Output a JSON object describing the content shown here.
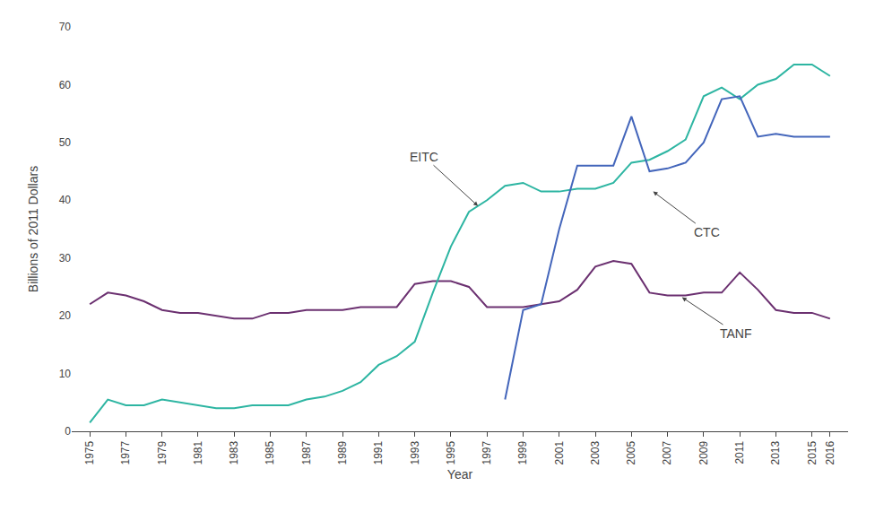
{
  "chart_data": {
    "type": "line",
    "xlabel": "Year",
    "ylabel": "Billions of 2011 Dollars",
    "xlim": [
      1974,
      2017
    ],
    "xticks": [
      1975,
      1977,
      1979,
      1981,
      1983,
      1985,
      1987,
      1989,
      1991,
      1993,
      1995,
      1997,
      1999,
      2001,
      2003,
      2005,
      2007,
      2009,
      2011,
      2013,
      2015,
      2016
    ],
    "ylim": [
      0,
      70
    ],
    "yticks": [
      0,
      10,
      20,
      30,
      40,
      50,
      60,
      70
    ],
    "grid": false,
    "series": [
      {
        "name": "TANF",
        "color": "#6b3070",
        "x": [
          1975,
          1976,
          1977,
          1978,
          1979,
          1980,
          1981,
          1982,
          1983,
          1984,
          1985,
          1986,
          1987,
          1988,
          1989,
          1990,
          1991,
          1992,
          1993,
          1994,
          1995,
          1996,
          1997,
          1998,
          1999,
          2000,
          2001,
          2002,
          2003,
          2004,
          2005,
          2006,
          2007,
          2008,
          2009,
          2010,
          2011,
          2012,
          2013,
          2014,
          2015,
          2016
        ],
        "values": [
          22.0,
          24.0,
          23.5,
          22.5,
          21.0,
          20.5,
          20.5,
          20.0,
          19.5,
          19.5,
          20.5,
          20.5,
          21.0,
          21.0,
          21.0,
          21.5,
          21.5,
          21.5,
          25.5,
          26.0,
          26.0,
          25.0,
          21.5,
          21.5,
          21.5,
          22.0,
          22.5,
          24.5,
          28.5,
          29.5,
          29.0,
          24.0,
          23.5,
          23.5,
          24.0,
          24.0,
          27.5,
          24.5,
          21.0,
          20.5,
          20.5,
          19.5
        ]
      },
      {
        "name": "EITC",
        "color": "#2db5a2",
        "x": [
          1975,
          1976,
          1977,
          1978,
          1979,
          1980,
          1981,
          1982,
          1983,
          1984,
          1985,
          1986,
          1987,
          1988,
          1989,
          1990,
          1991,
          1992,
          1993,
          1994,
          1995,
          1996,
          1997,
          1998,
          1999,
          2000,
          2001,
          2002,
          2003,
          2004,
          2005,
          2006,
          2007,
          2008,
          2009,
          2010,
          2011,
          2012,
          2013,
          2014,
          2015,
          2016
        ],
        "values": [
          1.5,
          5.5,
          4.5,
          4.5,
          5.5,
          5.0,
          4.5,
          4.0,
          4.0,
          4.5,
          4.5,
          4.5,
          5.5,
          6.0,
          7.0,
          8.5,
          11.5,
          13.0,
          15.5,
          24.0,
          32.0,
          38.0,
          40.0,
          42.5,
          43.0,
          41.5,
          41.5,
          42.0,
          42.0,
          43.0,
          46.5,
          47.0,
          48.5,
          50.5,
          58.0,
          59.5,
          57.5,
          60.0,
          61.0,
          63.5,
          63.5,
          61.5
        ]
      },
      {
        "name": "CTC",
        "color": "#4466bb",
        "x": [
          1998,
          1999,
          2000,
          2001,
          2002,
          2003,
          2004,
          2005,
          2006,
          2007,
          2008,
          2009,
          2010,
          2011,
          2012,
          2013,
          2014,
          2015,
          2016
        ],
        "values": [
          5.5,
          21.0,
          22.0,
          35.0,
          46.0,
          46.0,
          46.0,
          54.5,
          45.0,
          45.5,
          46.5,
          50.0,
          57.5,
          58.0,
          51.0,
          51.5,
          51.0,
          51.0,
          51.0
        ]
      }
    ],
    "annotations": [
      {
        "text": "EITC",
        "x": 1996.5,
        "y": 39.0
      },
      {
        "text": "CTC",
        "x": 2006.2,
        "y": 41.5
      },
      {
        "text": "TANF",
        "x": 2007.8,
        "y": 23.2
      }
    ]
  }
}
